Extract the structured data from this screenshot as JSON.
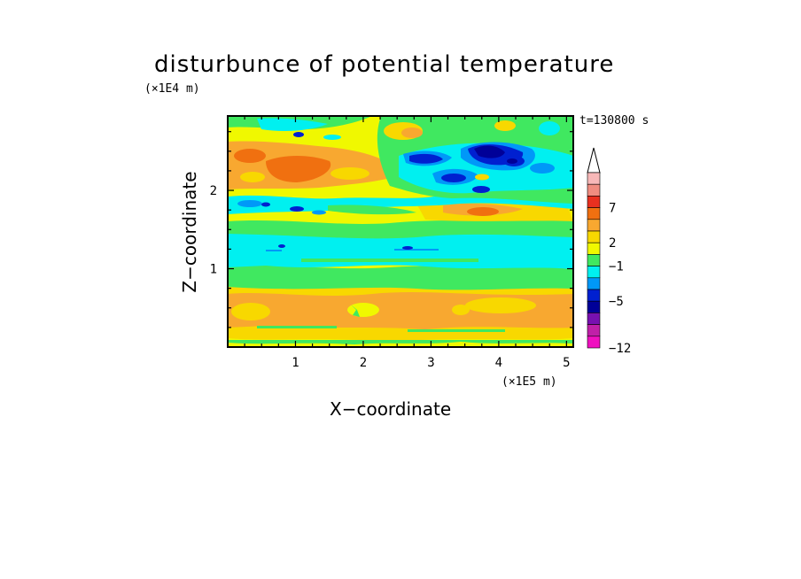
{
  "chart_data": {
    "type": "heatmap",
    "title": "disturbunce of potential temperature",
    "time_label": "t=130800 s",
    "xlabel": "X−coordinate",
    "ylabel": "Z−coordinate",
    "x_unit": "(×1E5 m)",
    "y_unit": "(×1E4 m)",
    "x_ticks": [
      "1",
      "2",
      "3",
      "4",
      "5"
    ],
    "y_ticks": [
      "1",
      "2"
    ],
    "xlim": [
      0,
      5.1
    ],
    "ylim": [
      0,
      2.95
    ],
    "colorbar": {
      "tick_labels": [
        "7",
        "2",
        "−1",
        "−5",
        "−12"
      ],
      "levels_top_to_bottom": [
        {
          "color": "#f7b8b8"
        },
        {
          "color": "#f08c80"
        },
        {
          "color": "#e83020"
        },
        {
          "color": "#f07010"
        },
        {
          "color": "#f8a830"
        },
        {
          "color": "#f8d800"
        },
        {
          "color": "#f0f800"
        },
        {
          "color": "#40e860"
        },
        {
          "color": "#00f0f0"
        },
        {
          "color": "#0098f8"
        },
        {
          "color": "#0020d0"
        },
        {
          "color": "#000098"
        },
        {
          "color": "#7810b0"
        },
        {
          "color": "#c020a8"
        },
        {
          "color": "#f010c0"
        }
      ],
      "extend": "max"
    },
    "field_description": {
      "bands_bottom_to_top": [
        {
          "z_range": [
            0.0,
            0.12
          ],
          "dominant": "yellow with green streaks"
        },
        {
          "z_range": [
            0.12,
            0.75
          ],
          "dominant": "yellow/orange"
        },
        {
          "z_range": [
            0.75,
            0.95
          ],
          "dominant": "green"
        },
        {
          "z_range": [
            0.95,
            1.45
          ],
          "dominant": "cyan"
        },
        {
          "z_range": [
            1.45,
            1.75
          ],
          "dominant": "green/yellow"
        },
        {
          "z_range": [
            1.75,
            2.1
          ],
          "dominant": "cyan/blue with orange patch near x=4"
        },
        {
          "z_range": [
            2.1,
            2.95
          ],
          "dominant": "orange/yellow (left), blue/navy cells (x 2.6-4.4)"
        }
      ]
    }
  }
}
